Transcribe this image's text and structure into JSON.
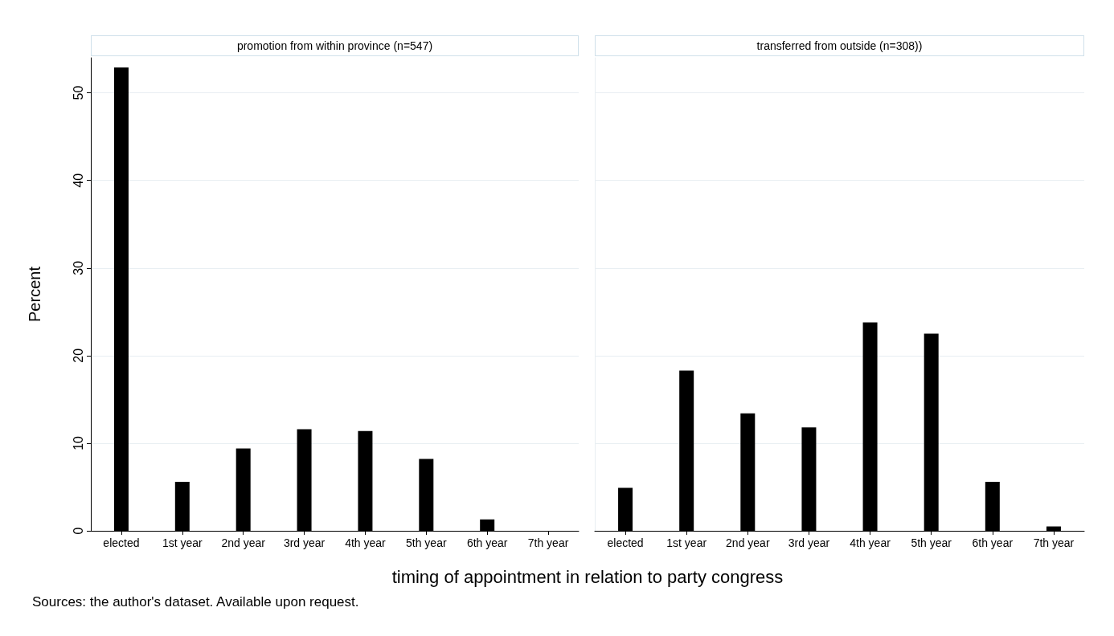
{
  "chart_data": [
    {
      "type": "bar",
      "title": "promotion from within province (n=547)",
      "ylabel": "Percent",
      "xlabel": "timing of appointment in relation to party congress",
      "annotations": [
        "Sources: the author's dataset. Available upon request."
      ],
      "categories": [
        "elected",
        "1st year",
        "2nd year",
        "3rd year",
        "4th year",
        "5th year",
        "6th year",
        "7th year"
      ],
      "values": [
        52.9,
        5.6,
        9.4,
        11.6,
        11.4,
        8.2,
        1.3,
        0
      ],
      "color": "#000000",
      "ylim": [
        0,
        54
      ],
      "yticks": [
        0,
        10,
        20,
        30,
        40,
        50
      ],
      "grid": "y"
    },
    {
      "type": "bar",
      "title": "transferred from outside (n=308))",
      "categories": [
        "elected",
        "1st year",
        "2nd year",
        "3rd year",
        "4th year",
        "5th year",
        "6th year",
        "7th year"
      ],
      "values": [
        4.9,
        18.3,
        13.4,
        11.8,
        23.8,
        22.5,
        5.6,
        0.5
      ],
      "color": "#000000",
      "ylim": [
        0,
        54
      ],
      "yticks": [
        0,
        10,
        20,
        30,
        40,
        50
      ],
      "grid": "y",
      "tick_labels": "x"
    }
  ]
}
